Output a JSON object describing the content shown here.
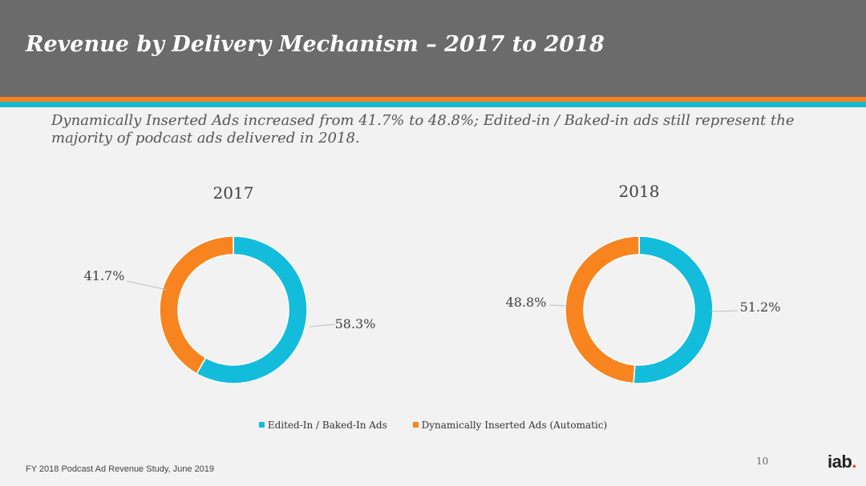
{
  "header": {
    "title": "Revenue by Delivery Mechanism – 2017 to 2018"
  },
  "subtitle": "Dynamically Inserted Ads increased from 41.7% to 48.8%; Edited-in / Baked-in ads still represent the majority of podcast ads delivered in 2018.",
  "colors": {
    "header_bg": "#6b6b6b",
    "stripe_orange": "#f58220",
    "stripe_teal": "#1cb8cf",
    "series_teal": "#14bcdc",
    "series_orange": "#f7841e"
  },
  "chart_data": [
    {
      "type": "pie",
      "donut": true,
      "title": "2017",
      "categories": [
        "Edited-In / Baked-In Ads",
        "Dynamically Inserted Ads (Automatic)"
      ],
      "values": [
        58.3,
        41.7
      ],
      "labels": [
        "58.3%",
        "41.7%"
      ]
    },
    {
      "type": "pie",
      "donut": true,
      "title": "2018",
      "categories": [
        "Edited-In / Baked-In Ads",
        "Dynamically Inserted Ads (Automatic)"
      ],
      "values": [
        51.2,
        48.8
      ],
      "labels": [
        "51.2%",
        "48.8%"
      ]
    }
  ],
  "legend": {
    "items": [
      {
        "label": "Edited-In / Baked-In Ads",
        "color": "#14bcdc"
      },
      {
        "label": "Dynamically Inserted Ads (Automatic)",
        "color": "#f7841e"
      }
    ]
  },
  "footer": {
    "note": "FY 2018 Podcast Ad Revenue Study, June 2019",
    "page_number": "10",
    "logo_text": "iab",
    "logo_dot": "."
  }
}
